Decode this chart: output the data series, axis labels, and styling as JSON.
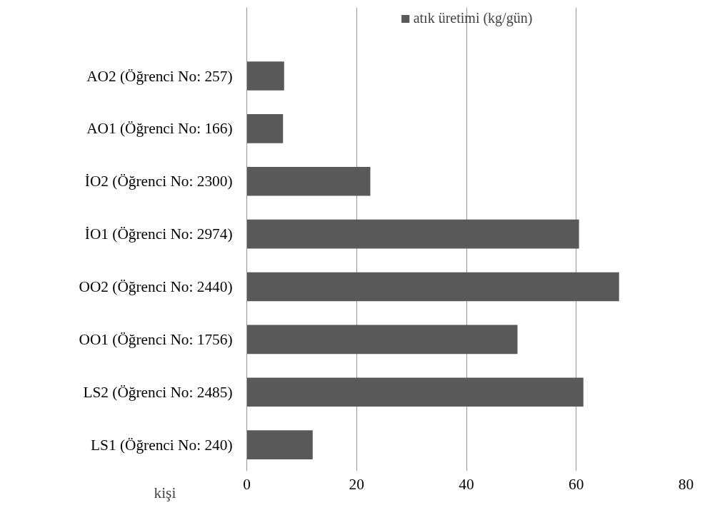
{
  "chart_data": {
    "type": "bar",
    "orientation": "horizontal",
    "categories": [
      "AO2 (Öğrenci No: 257)",
      "AO1 (Öğrenci No: 166)",
      "İO2 (Öğrenci No: 2300)",
      "İO1 (Öğrenci No: 2974)",
      "OO2 (Öğrenci No: 2440)",
      "OO1 (Öğrenci No: 1756)",
      "LS2 (Öğrenci No: 2485)",
      "LS1 (Öğrenci No: 240)"
    ],
    "series": [
      {
        "name": "atık üretimi (kg/gün)",
        "color": "#595959",
        "values": [
          6.8,
          6.6,
          22.5,
          60.5,
          67.8,
          49.3,
          61.3,
          12.0
        ]
      }
    ],
    "xlim": [
      0,
      80
    ],
    "xticks": [
      0,
      20,
      40,
      60,
      80
    ],
    "grid": "x",
    "legend": "top",
    "annotations": [
      "kişi"
    ]
  }
}
